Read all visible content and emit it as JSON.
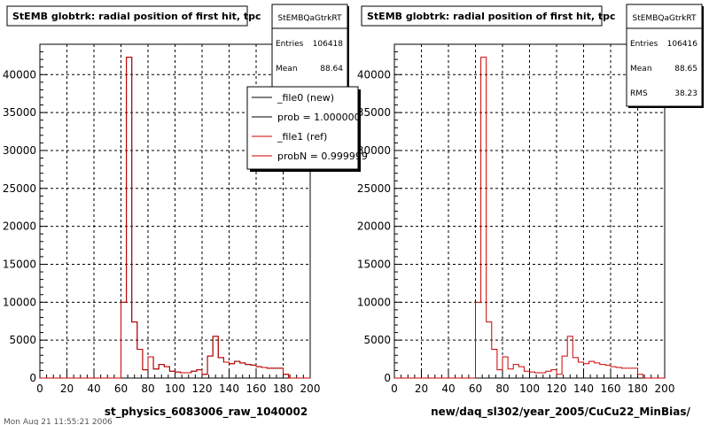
{
  "footer_text": "Mon Aug 21 11:55:21 2006",
  "colors": {
    "hist_red": "#cc0000",
    "hist_black": "#000000",
    "grid": "#000000",
    "background": "#ffffff"
  },
  "chart_data": [
    {
      "type": "bar",
      "title": "StEMB globtrk: radial position of first hit, tpc",
      "xlabel": "st_physics_6083006_raw_1040002",
      "ylabel": "",
      "xlim": [
        0,
        200
      ],
      "ylim": [
        0,
        44000
      ],
      "x_ticks": [
        "0",
        "20",
        "40",
        "60",
        "80",
        "100",
        "120",
        "140",
        "160",
        "180",
        "200"
      ],
      "y_ticks": [
        "0",
        "5000",
        "10000",
        "15000",
        "20000",
        "25000",
        "30000",
        "35000",
        "40000"
      ],
      "grid": true,
      "bin_width": 4,
      "bin_edges_start": 0,
      "series": [
        {
          "name": "_file0 (new)",
          "color": "#000000",
          "values": [
            0,
            0,
            0,
            0,
            0,
            0,
            0,
            0,
            0,
            0,
            0,
            0,
            0,
            0,
            0,
            10000,
            42300,
            7400,
            3800,
            1100,
            2800,
            1200,
            1800,
            1500,
            900,
            800,
            700,
            700,
            900,
            1100,
            500,
            2900,
            5500,
            2700,
            2100,
            1900,
            2200,
            2000,
            1800,
            1700,
            1500,
            1400,
            1300,
            1300,
            1300,
            500,
            0,
            0,
            0,
            0
          ]
        },
        {
          "name": "_file1 (ref)",
          "color": "#cc0000",
          "values": [
            0,
            0,
            0,
            0,
            0,
            0,
            0,
            0,
            0,
            0,
            0,
            0,
            0,
            0,
            0,
            10000,
            42300,
            7400,
            3800,
            1100,
            2800,
            1200,
            1800,
            1500,
            900,
            800,
            700,
            700,
            900,
            1100,
            500,
            2900,
            5500,
            2700,
            2100,
            1900,
            2200,
            2000,
            1800,
            1700,
            1500,
            1400,
            1300,
            1300,
            1300,
            500,
            0,
            0,
            0,
            0
          ]
        }
      ],
      "stats": {
        "title": "StEMBQaGtrkRT",
        "entries_label": "Entries",
        "entries": "106418",
        "mean_label": "Mean",
        "mean": "88.64"
      },
      "legend": {
        "placement": "top-right",
        "entries": [
          {
            "text": "_file0 (new)",
            "color": "#000000"
          },
          {
            "text": "prob = 1.000000",
            "color": "#000000"
          },
          {
            "text": "_file1 (ref)",
            "color": "#cc0000"
          },
          {
            "text": "probN = 0.999999",
            "color": "#cc0000"
          }
        ]
      }
    },
    {
      "type": "bar",
      "title": "StEMB globtrk: radial position of first hit, tpc",
      "xlabel": "new/daq_sl302/year_2005/CuCu22_MinBias/",
      "ylabel": "",
      "xlim": [
        0,
        200
      ],
      "ylim": [
        0,
        44000
      ],
      "x_ticks": [
        "0",
        "20",
        "40",
        "60",
        "80",
        "100",
        "120",
        "140",
        "160",
        "180",
        "200"
      ],
      "y_ticks": [
        "0",
        "5000",
        "10000",
        "15000",
        "20000",
        "25000",
        "30000",
        "35000",
        "40000"
      ],
      "grid": true,
      "bin_width": 4,
      "bin_edges_start": 0,
      "series": [
        {
          "name": "",
          "color": "#cc0000",
          "values": [
            0,
            0,
            0,
            0,
            0,
            0,
            0,
            0,
            0,
            0,
            0,
            0,
            0,
            0,
            0,
            10000,
            42300,
            7400,
            3800,
            1100,
            2800,
            1200,
            1800,
            1500,
            900,
            800,
            700,
            700,
            900,
            1100,
            500,
            2900,
            5500,
            2700,
            2100,
            1900,
            2200,
            2000,
            1800,
            1700,
            1500,
            1400,
            1300,
            1300,
            1300,
            500,
            0,
            0,
            0,
            0
          ]
        }
      ],
      "stats": {
        "title": "StEMBQaGtrkRT",
        "entries_label": "Entries",
        "entries": "106416",
        "mean_label": "Mean",
        "mean": "88.65",
        "rms_label": "RMS",
        "rms": "38.23"
      }
    }
  ]
}
